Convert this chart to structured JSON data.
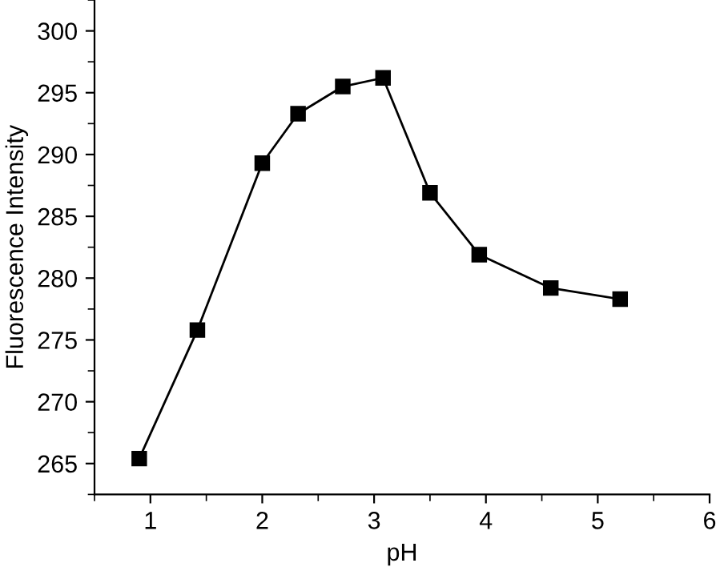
{
  "chart_data": {
    "type": "line",
    "xlabel": "pH",
    "ylabel": "Fluorescence Intensity",
    "x": [
      0.9,
      1.42,
      2.0,
      2.32,
      2.72,
      3.08,
      3.5,
      3.94,
      4.58,
      5.2
    ],
    "series": [
      {
        "color": "#000000",
        "values": [
          265.4,
          275.8,
          289.3,
          293.3,
          295.5,
          296.2,
          286.9,
          281.9,
          279.2,
          278.3
        ]
      }
    ],
    "xlim": [
      0.5,
      6
    ],
    "xticks": [
      1,
      2,
      3,
      4,
      5,
      6
    ],
    "ylim": [
      262.5,
      302.5
    ],
    "yticks": [
      265,
      270,
      275,
      280,
      285,
      290,
      295,
      300
    ],
    "marker": "square",
    "line_style": "solid",
    "grid": false,
    "legend": false
  }
}
